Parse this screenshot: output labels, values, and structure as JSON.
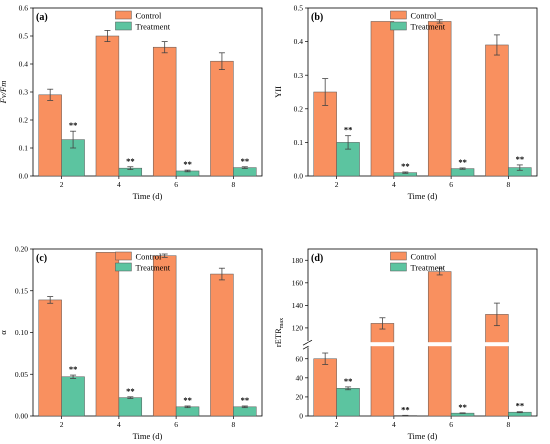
{
  "figure": {
    "background": "#ffffff",
    "colors": {
      "control": "#f9905f",
      "treatment": "#5cc4a0",
      "bar_edge": "#555555",
      "error": "#444444"
    }
  },
  "chart_data": [
    {
      "id": "a",
      "type": "bar",
      "panel_label": "(a)",
      "title": "",
      "xlabel": "Time (d)",
      "ylabel": "Fv/Fm",
      "ylabel_italic": true,
      "categories": [
        "2",
        "4",
        "6",
        "8"
      ],
      "ylim": [
        0,
        0.6
      ],
      "yticks": [
        0.0,
        0.1,
        0.2,
        0.3,
        0.4,
        0.5,
        0.6
      ],
      "ytick_labels": [
        "0.0",
        "0.1",
        "0.2",
        "0.3",
        "0.4",
        "0.5",
        "0.6"
      ],
      "legend_position": "top-right",
      "series": [
        {
          "name": "Control",
          "values": [
            0.29,
            0.5,
            0.46,
            0.41
          ],
          "errors": [
            0.02,
            0.02,
            0.02,
            0.03
          ]
        },
        {
          "name": "Treatment",
          "values": [
            0.13,
            0.028,
            0.018,
            0.03
          ],
          "errors": [
            0.03,
            0.005,
            0.003,
            0.003
          ]
        }
      ],
      "annotations": [
        "**",
        "**",
        "**",
        "**"
      ]
    },
    {
      "id": "b",
      "type": "bar",
      "panel_label": "(b)",
      "title": "",
      "xlabel": "Time (d)",
      "ylabel": "YII",
      "ylabel_italic": false,
      "categories": [
        "2",
        "4",
        "6",
        "8"
      ],
      "ylim": [
        0,
        0.5
      ],
      "yticks": [
        0.0,
        0.1,
        0.2,
        0.3,
        0.4,
        0.5
      ],
      "ytick_labels": [
        "0.0",
        "0.1",
        "0.2",
        "0.3",
        "0.4",
        "0.5"
      ],
      "legend_position": "top-right",
      "series": [
        {
          "name": "Control",
          "values": [
            0.25,
            0.46,
            0.46,
            0.39
          ],
          "errors": [
            0.04,
            0.0,
            0.005,
            0.03
          ]
        },
        {
          "name": "Treatment",
          "values": [
            0.1,
            0.01,
            0.022,
            0.025
          ],
          "errors": [
            0.02,
            0.002,
            0.002,
            0.008
          ]
        }
      ],
      "annotations": [
        "**",
        "**",
        "**",
        "**"
      ]
    },
    {
      "id": "c",
      "type": "bar",
      "panel_label": "(c)",
      "title": "",
      "xlabel": "Time (d)",
      "ylabel": "α",
      "ylabel_italic": false,
      "categories": [
        "2",
        "4",
        "6",
        "8"
      ],
      "ylim": [
        0,
        0.2
      ],
      "yticks": [
        0.0,
        0.05,
        0.1,
        0.15,
        0.2
      ],
      "ytick_labels": [
        "0.00",
        "0.05",
        "0.10",
        "0.15",
        "0.20"
      ],
      "legend_position": "top-right",
      "series": [
        {
          "name": "Control",
          "values": [
            0.139,
            0.196,
            0.192,
            0.17
          ],
          "errors": [
            0.004,
            0.0,
            0.002,
            0.007
          ]
        },
        {
          "name": "Treatment",
          "values": [
            0.047,
            0.022,
            0.011,
            0.011
          ],
          "errors": [
            0.002,
            0.001,
            0.001,
            0.001
          ]
        }
      ],
      "annotations": [
        "**",
        "**",
        "**",
        "**"
      ]
    },
    {
      "id": "d",
      "type": "bar",
      "panel_label": "(d)",
      "title": "",
      "xlabel": "Time (d)",
      "ylabel": "rETR",
      "ylabel_subscript": "max",
      "ylabel_italic": false,
      "categories": [
        "2",
        "4",
        "6",
        "8"
      ],
      "ylim": [
        0,
        190
      ],
      "broken_axis": [
        70,
        110
      ],
      "yticks": [
        0,
        20,
        40,
        60,
        120,
        140,
        160,
        180
      ],
      "ytick_labels": [
        "0",
        "20",
        "40",
        "60",
        "120",
        "140",
        "160",
        "180"
      ],
      "legend_position": "top-right",
      "series": [
        {
          "name": "Control",
          "values": [
            60,
            124,
            170,
            132
          ],
          "errors": [
            6,
            5,
            3,
            10
          ]
        },
        {
          "name": "Treatment",
          "values": [
            29,
            0.5,
            3,
            4
          ],
          "errors": [
            1.5,
            0.2,
            0.3,
            0.5
          ]
        }
      ],
      "annotations": [
        "**",
        "**",
        "**",
        "**"
      ]
    }
  ]
}
